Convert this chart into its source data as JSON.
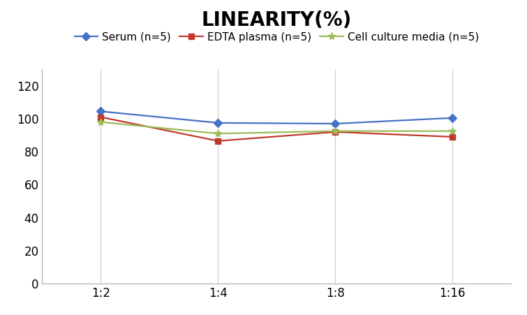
{
  "title": "LINEARITY(%)",
  "x_labels": [
    "1:2",
    "1:4",
    "1:8",
    "1:16"
  ],
  "x_positions": [
    0,
    1,
    2,
    3
  ],
  "series": [
    {
      "label": "Serum (n=5)",
      "values": [
        104.5,
        97.5,
        97.0,
        100.5
      ],
      "color": "#4472C4",
      "marker": "D",
      "markersize": 6
    },
    {
      "label": "EDTA plasma (n=5)",
      "values": [
        101.0,
        86.5,
        92.0,
        89.0
      ],
      "color": "#C0392B",
      "marker": "s",
      "markersize": 6
    },
    {
      "label": "Cell culture media (n=5)",
      "values": [
        98.0,
        91.0,
        92.5,
        92.5
      ],
      "color": "#9BBB59",
      "marker": "*",
      "markersize": 8
    }
  ],
  "ylim": [
    0,
    130
  ],
  "yticks": [
    0,
    20,
    40,
    60,
    80,
    100,
    120
  ],
  "background_color": "#FFFFFF",
  "title_fontsize": 20,
  "legend_fontsize": 11,
  "tick_fontsize": 12
}
